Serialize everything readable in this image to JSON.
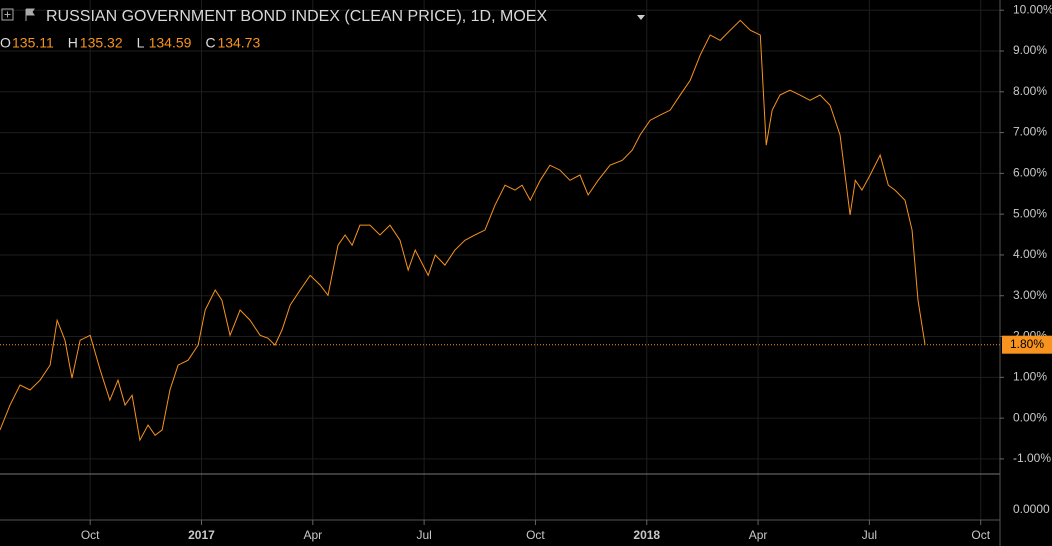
{
  "chart_data": {
    "type": "line",
    "title": "RUSSIAN GOVERNMENT BOND INDEX (CLEAN PRICE), 1D, MOEX",
    "ohlc": [
      {
        "key": "O",
        "value": "135.11"
      },
      {
        "key": "H",
        "value": "135.32"
      },
      {
        "key": "L",
        "value": "134.59"
      },
      {
        "key": "C",
        "value": "134.73"
      }
    ],
    "x": [
      0,
      0.27,
      0.54,
      0.81,
      1.08,
      1.35,
      1.54,
      1.75,
      1.94,
      2.16,
      2.43,
      2.7,
      2.96,
      3.18,
      3.37,
      3.56,
      3.77,
      3.99,
      4.18,
      4.37,
      4.58,
      4.8,
      5.07,
      5.34,
      5.53,
      5.8,
      5.98,
      6.2,
      6.47,
      6.74,
      7.01,
      7.22,
      7.41,
      7.6,
      7.82,
      8.09,
      8.36,
      8.63,
      8.84,
      9.11,
      9.3,
      9.49,
      9.7,
      9.97,
      10.24,
      10.51,
      10.78,
      11.0,
      11.19,
      11.54,
      11.73,
      11.99,
      12.26,
      12.53,
      12.8,
      13.07,
      13.34,
      13.61,
      13.88,
      14.07,
      14.29,
      14.56,
      14.82,
      15.09,
      15.36,
      15.63,
      15.85,
      16.12,
      16.44,
      16.77,
      17.04,
      17.25,
      17.52,
      17.79,
      18.06,
      18.33,
      18.6,
      18.87,
      19.14,
      19.41,
      19.68,
      19.95,
      20.22,
      20.49,
      20.65,
      20.81,
      21.02,
      21.29,
      21.56,
      21.83,
      22.1,
      22.37,
      22.64,
      22.91,
      23.05,
      23.23,
      23.45,
      23.72,
      23.94,
      24.12,
      24.39,
      24.58,
      24.74,
      24.93
    ],
    "series": [
      {
        "name": "RUSSIAN GOVERNMENT BOND INDEX (CLEAN PRICE)",
        "color": "#f7931e",
        "values": [
          -0.29,
          0.32,
          0.81,
          0.69,
          0.93,
          1.3,
          2.4,
          1.91,
          0.98,
          1.91,
          2.03,
          1.18,
          0.44,
          0.93,
          0.32,
          0.56,
          -0.54,
          -0.17,
          -0.42,
          -0.29,
          0.69,
          1.3,
          1.42,
          1.79,
          2.65,
          3.14,
          2.89,
          2.03,
          2.65,
          2.4,
          2.03,
          1.96,
          1.79,
          2.16,
          2.77,
          3.14,
          3.5,
          3.26,
          3.01,
          4.24,
          4.49,
          4.24,
          4.73,
          4.73,
          4.49,
          4.73,
          4.36,
          3.63,
          4.12,
          3.5,
          4.0,
          3.75,
          4.12,
          4.36,
          4.49,
          4.61,
          5.22,
          5.71,
          5.59,
          5.71,
          5.34,
          5.83,
          6.2,
          6.08,
          5.83,
          5.96,
          5.47,
          5.83,
          6.2,
          6.32,
          6.57,
          6.94,
          7.3,
          7.43,
          7.55,
          7.92,
          8.28,
          8.9,
          9.39,
          9.26,
          9.51,
          9.75,
          9.51,
          9.39,
          6.69,
          7.55,
          7.92,
          8.04,
          7.92,
          7.79,
          7.92,
          7.67,
          6.94,
          4.98,
          5.83,
          5.59,
          5.96,
          6.45,
          5.71,
          5.59,
          5.34,
          4.61,
          2.89,
          1.8
        ]
      }
    ],
    "last_value": {
      "value": 1.8,
      "label": "1.80%"
    },
    "xlim": [
      0,
      26.95
    ],
    "xticks": [
      {
        "value": 2.43,
        "label": "Oct"
      },
      {
        "value": 5.43,
        "label": "2017"
      },
      {
        "value": 8.43,
        "label": "Apr"
      },
      {
        "value": 11.43,
        "label": "Jul"
      },
      {
        "value": 14.43,
        "label": "Oct"
      },
      {
        "value": 17.43,
        "label": "2018"
      },
      {
        "value": 20.43,
        "label": "Apr"
      },
      {
        "value": 23.43,
        "label": "Jul"
      },
      {
        "value": 26.43,
        "label": "Oct"
      }
    ],
    "ylim": [
      -1.37,
      10.25
    ],
    "yticks": [
      {
        "value": -1,
        "label": "-1.00%"
      },
      {
        "value": 0,
        "label": "0.00%"
      },
      {
        "value": 1,
        "label": "1.00%"
      },
      {
        "value": 2,
        "label": "2.00%"
      },
      {
        "value": 3,
        "label": "3.00%"
      },
      {
        "value": 4,
        "label": "4.00%"
      },
      {
        "value": 5,
        "label": "5.00%"
      },
      {
        "value": 6,
        "label": "6.00%"
      },
      {
        "value": 7,
        "label": "7.00%"
      },
      {
        "value": 8,
        "label": "8.00%"
      },
      {
        "value": 9,
        "label": "9.00%"
      },
      {
        "value": 10,
        "label": "10.00%"
      }
    ],
    "lower_pane_yticks": [
      {
        "value": 0,
        "label": "0.0000"
      }
    ],
    "grid": true
  }
}
